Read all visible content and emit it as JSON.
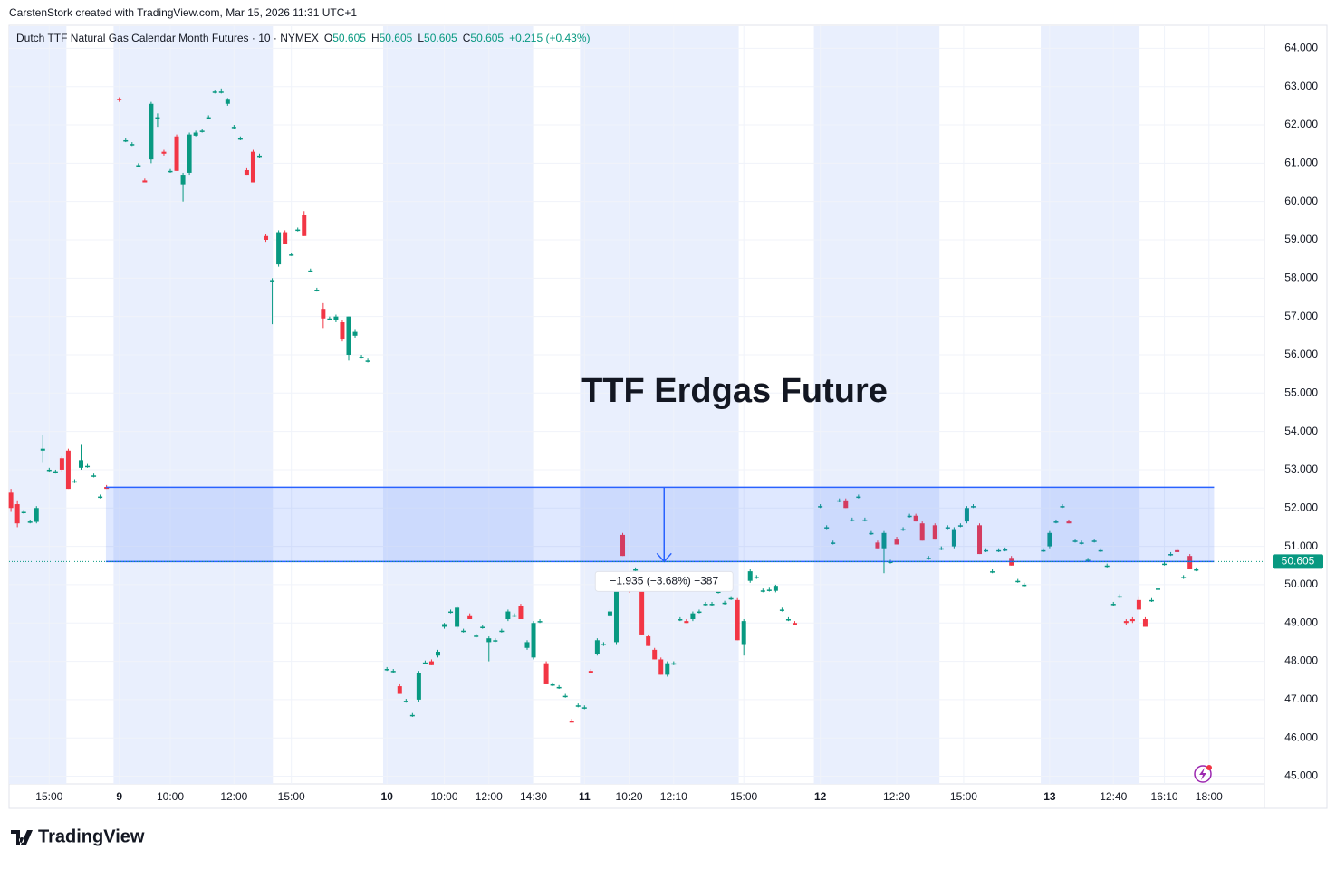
{
  "attribution": "CarstenStork created with TradingView.com, Mar 15, 2026 11:31 UTC+1",
  "logo": "TradingView",
  "chart_data": {
    "type": "candlestick",
    "symbol": "Dutch TTF Natural Gas Calendar Month Futures · 10 · NYMEX",
    "ohlc_labels": [
      "O",
      "H",
      "L",
      "C"
    ],
    "ohlc_values": [
      50.605,
      50.605,
      50.605,
      50.605
    ],
    "change": "+0.215 (+0.43%)",
    "annotation": "TTF Erdgas Future",
    "up_color": "#089981",
    "down_color": "#f23645",
    "xlim": [
      -0.3,
      196.7
    ],
    "ylim": [
      44.8,
      64.6
    ],
    "yticks": [
      {
        "value": 45,
        "label": "45.000"
      },
      {
        "value": 46,
        "label": "46.000"
      },
      {
        "value": 47,
        "label": "47.000"
      },
      {
        "value": 48,
        "label": "48.000"
      },
      {
        "value": 49,
        "label": "49.000"
      },
      {
        "value": 50,
        "label": "50.000"
      },
      {
        "value": 51,
        "label": "51.000"
      },
      {
        "value": 52,
        "label": "52.000"
      },
      {
        "value": 53,
        "label": "53.000"
      },
      {
        "value": 54,
        "label": "54.000"
      },
      {
        "value": 55,
        "label": "55.000"
      },
      {
        "value": 56,
        "label": "56.000"
      },
      {
        "value": 57,
        "label": "57.000"
      },
      {
        "value": 58,
        "label": "58.000"
      },
      {
        "value": 59,
        "label": "59.000"
      },
      {
        "value": 60,
        "label": "60.000"
      },
      {
        "value": 61,
        "label": "61.000"
      },
      {
        "value": 62,
        "label": "62.000"
      },
      {
        "value": 63,
        "label": "63.000"
      },
      {
        "value": 64,
        "label": "64.000"
      }
    ],
    "xticks": [
      {
        "value": 6,
        "label": "15:00"
      },
      {
        "value": 17,
        "label": "9"
      },
      {
        "value": 25,
        "label": "10:00"
      },
      {
        "value": 35,
        "label": "12:00"
      },
      {
        "value": 44,
        "label": "15:00"
      },
      {
        "value": 59,
        "label": "10"
      },
      {
        "value": 68,
        "label": "10:00"
      },
      {
        "value": 75,
        "label": "12:00"
      },
      {
        "value": 82,
        "label": "14:30"
      },
      {
        "value": 90,
        "label": "11"
      },
      {
        "value": 97,
        "label": "10:20"
      },
      {
        "value": 104,
        "label": "12:10"
      },
      {
        "value": 115,
        "label": "15:00"
      },
      {
        "value": 127,
        "label": "12"
      },
      {
        "value": 139,
        "label": "12:20"
      },
      {
        "value": 149.5,
        "label": "15:00"
      },
      {
        "value": 163,
        "label": "13"
      },
      {
        "value": 173,
        "label": "12:40"
      },
      {
        "value": 181,
        "label": "16:10"
      },
      {
        "value": 188,
        "label": "18:00"
      }
    ],
    "grid": true,
    "sessions": [
      [
        -0.3,
        8.7
      ],
      [
        16.1,
        41.1
      ],
      [
        58.4,
        82.1
      ],
      [
        89.3,
        114.2
      ],
      [
        126,
        145.7
      ],
      [
        161.6,
        177.1
      ]
    ],
    "measure": {
      "x0": 14.9,
      "x1": 188.8,
      "top": 52.54,
      "bottom": 50.605,
      "arrow_x": 102.5,
      "label": "−1.935 (−3.68%) −387"
    },
    "last_price": 50.605,
    "candles": [
      [
        0,
        52.4,
        52.5,
        51.9,
        52.0
      ],
      [
        1,
        52.1,
        52.2,
        51.5,
        51.6
      ],
      [
        2,
        51.9,
        51.95,
        51.85,
        51.9
      ],
      [
        3,
        51.65,
        51.7,
        51.6,
        51.65
      ],
      [
        4,
        51.64,
        52.05,
        51.6,
        52.0
      ],
      [
        5,
        53.5,
        53.9,
        53.2,
        53.55
      ],
      [
        6,
        53.0,
        53.05,
        52.95,
        53.0
      ],
      [
        7,
        52.96,
        53.0,
        52.9,
        52.96
      ],
      [
        8,
        53.3,
        53.35,
        52.95,
        53.0
      ],
      [
        9,
        53.5,
        53.55,
        52.5,
        52.5
      ],
      [
        10,
        52.7,
        52.75,
        52.65,
        52.7
      ],
      [
        11,
        53.05,
        53.65,
        53.0,
        53.25
      ],
      [
        12,
        53.1,
        53.15,
        53.05,
        53.1
      ],
      [
        13,
        52.85,
        52.9,
        52.8,
        52.85
      ],
      [
        14,
        52.3,
        52.35,
        52.25,
        52.3
      ],
      [
        15,
        52.55,
        52.6,
        52.5,
        52.5
      ],
      [
        17,
        62.68,
        62.72,
        62.6,
        62.65
      ],
      [
        18,
        61.6,
        61.65,
        61.55,
        61.6
      ],
      [
        19,
        61.5,
        61.55,
        61.45,
        61.5
      ],
      [
        20,
        60.95,
        61.0,
        60.9,
        60.95
      ],
      [
        21,
        60.55,
        60.6,
        60.5,
        60.5
      ],
      [
        22,
        61.1,
        62.6,
        61.0,
        62.55
      ],
      [
        23,
        62.2,
        62.3,
        61.95,
        62.2
      ],
      [
        24,
        61.3,
        61.35,
        61.2,
        61.25
      ],
      [
        25,
        60.8,
        60.85,
        60.75,
        60.8
      ],
      [
        26,
        61.7,
        61.75,
        60.8,
        60.8
      ],
      [
        27,
        60.45,
        60.75,
        60.0,
        60.7
      ],
      [
        28,
        60.75,
        61.8,
        60.7,
        61.75
      ],
      [
        29,
        61.72,
        61.85,
        61.7,
        61.8
      ],
      [
        30,
        61.85,
        61.9,
        61.8,
        61.85
      ],
      [
        31,
        62.2,
        62.25,
        62.15,
        62.2
      ],
      [
        32,
        62.87,
        62.92,
        62.82,
        62.87
      ],
      [
        33,
        62.87,
        62.95,
        62.82,
        62.87
      ],
      [
        34,
        62.55,
        62.7,
        62.5,
        62.68
      ],
      [
        35,
        61.95,
        62.0,
        61.9,
        61.95
      ],
      [
        36,
        61.65,
        61.7,
        61.6,
        61.65
      ],
      [
        37,
        60.82,
        60.87,
        60.7,
        60.7
      ],
      [
        38,
        61.3,
        61.35,
        60.5,
        60.5
      ],
      [
        39,
        61.2,
        61.25,
        61.15,
        61.2
      ],
      [
        40,
        59.1,
        59.15,
        58.95,
        59.0
      ],
      [
        41,
        57.95,
        58.0,
        56.8,
        57.95
      ],
      [
        42,
        58.36,
        59.25,
        58.3,
        59.2
      ],
      [
        43,
        59.2,
        59.25,
        58.9,
        58.9
      ],
      [
        44,
        58.62,
        58.67,
        58.58,
        58.62
      ],
      [
        45,
        59.27,
        59.32,
        59.22,
        59.27
      ],
      [
        46,
        59.65,
        59.75,
        59.1,
        59.1
      ],
      [
        47,
        58.2,
        58.25,
        58.15,
        58.2
      ],
      [
        48,
        57.7,
        57.75,
        57.65,
        57.7
      ],
      [
        49,
        57.2,
        57.35,
        56.7,
        56.95
      ],
      [
        50,
        56.95,
        57.0,
        56.9,
        56.95
      ],
      [
        51,
        56.9,
        57.05,
        56.85,
        57.0
      ],
      [
        52,
        56.85,
        56.9,
        56.35,
        56.4
      ],
      [
        53,
        56.0,
        57.0,
        55.85,
        57.0
      ],
      [
        54,
        56.5,
        56.65,
        56.45,
        56.6
      ],
      [
        55,
        55.95,
        56.0,
        55.9,
        55.95
      ],
      [
        56,
        55.85,
        55.9,
        55.8,
        55.85
      ],
      [
        59,
        47.8,
        47.85,
        47.75,
        47.8
      ],
      [
        60,
        47.75,
        47.8,
        47.7,
        47.75
      ],
      [
        61,
        47.35,
        47.4,
        47.15,
        47.15
      ],
      [
        62,
        46.97,
        47.02,
        46.92,
        46.97
      ],
      [
        63,
        46.6,
        46.65,
        46.55,
        46.6
      ],
      [
        64,
        47.0,
        47.75,
        46.95,
        47.7
      ],
      [
        65,
        47.97,
        48.02,
        47.92,
        47.97
      ],
      [
        66,
        48.0,
        48.05,
        47.9,
        47.9
      ],
      [
        67,
        48.15,
        48.3,
        48.1,
        48.25
      ],
      [
        68,
        48.9,
        49.0,
        48.85,
        48.97
      ],
      [
        69,
        49.3,
        49.35,
        49.25,
        49.3
      ],
      [
        70,
        48.9,
        49.45,
        48.85,
        49.4
      ],
      [
        71,
        48.8,
        48.85,
        48.75,
        48.8
      ],
      [
        72,
        49.2,
        49.25,
        49.1,
        49.1
      ],
      [
        73,
        48.67,
        48.72,
        48.62,
        48.67
      ],
      [
        74,
        48.9,
        48.95,
        48.85,
        48.9
      ],
      [
        75,
        48.5,
        48.65,
        48.0,
        48.6
      ],
      [
        76,
        48.55,
        48.6,
        48.5,
        48.55
      ],
      [
        77,
        48.8,
        48.85,
        48.75,
        48.8
      ],
      [
        78,
        49.1,
        49.35,
        49.05,
        49.3
      ],
      [
        79,
        49.2,
        49.25,
        49.15,
        49.2
      ],
      [
        80,
        49.45,
        49.5,
        49.1,
        49.1
      ],
      [
        81,
        48.35,
        48.55,
        48.3,
        48.5
      ],
      [
        82,
        48.1,
        49.05,
        48.05,
        49.0
      ],
      [
        83,
        49.05,
        49.1,
        49.0,
        49.05
      ],
      [
        84,
        47.95,
        48.0,
        47.4,
        47.4
      ],
      [
        85,
        47.4,
        47.45,
        47.35,
        47.4
      ],
      [
        86,
        47.33,
        47.38,
        47.28,
        47.33
      ],
      [
        87,
        47.1,
        47.15,
        47.05,
        47.1
      ],
      [
        88,
        46.45,
        46.5,
        46.4,
        46.4
      ],
      [
        89,
        46.85,
        46.9,
        46.8,
        46.85
      ],
      [
        90,
        46.8,
        46.85,
        46.75,
        46.8
      ],
      [
        91,
        47.75,
        47.8,
        47.7,
        47.7
      ],
      [
        92,
        48.2,
        48.6,
        48.15,
        48.55
      ],
      [
        93,
        48.45,
        48.5,
        48.4,
        48.45
      ],
      [
        94,
        49.2,
        49.35,
        49.15,
        49.3
      ],
      [
        95,
        48.5,
        50.15,
        48.45,
        50.1
      ],
      [
        96,
        51.3,
        51.35,
        50.75,
        50.75
      ],
      [
        97,
        50.02,
        50.2,
        49.8,
        49.95
      ],
      [
        98,
        50.4,
        50.45,
        50.35,
        50.4
      ],
      [
        99,
        49.85,
        49.9,
        48.7,
        48.7
      ],
      [
        100,
        48.65,
        48.7,
        48.4,
        48.4
      ],
      [
        101,
        48.3,
        48.35,
        48.05,
        48.05
      ],
      [
        102,
        48.05,
        48.1,
        47.65,
        47.65
      ],
      [
        103,
        47.65,
        48.0,
        47.6,
        47.95
      ],
      [
        104,
        47.95,
        48.0,
        47.9,
        47.95
      ],
      [
        105,
        49.1,
        49.15,
        49.05,
        49.1
      ],
      [
        106,
        49.05,
        49.1,
        49.0,
        49.0
      ],
      [
        107,
        49.1,
        49.3,
        49.05,
        49.25
      ],
      [
        108,
        49.3,
        49.35,
        49.25,
        49.3
      ],
      [
        109,
        49.5,
        49.55,
        49.45,
        49.5
      ],
      [
        110,
        49.5,
        49.55,
        49.45,
        49.5
      ],
      [
        111,
        49.82,
        49.87,
        49.77,
        49.82
      ],
      [
        112,
        49.53,
        49.58,
        49.48,
        49.53
      ],
      [
        113,
        49.65,
        49.7,
        49.6,
        49.65
      ],
      [
        114,
        49.6,
        49.65,
        48.55,
        48.55
      ],
      [
        115,
        48.45,
        49.1,
        48.15,
        49.05
      ],
      [
        116,
        50.1,
        50.4,
        50.05,
        50.35
      ],
      [
        117,
        50.2,
        50.25,
        50.15,
        50.2
      ],
      [
        118,
        49.85,
        49.9,
        49.8,
        49.85
      ],
      [
        119,
        49.87,
        49.92,
        49.82,
        49.87
      ],
      [
        120,
        49.84,
        50.0,
        49.8,
        49.97
      ],
      [
        121,
        49.35,
        49.4,
        49.3,
        49.35
      ],
      [
        122,
        49.1,
        49.15,
        49.05,
        49.1
      ],
      [
        123,
        49.0,
        49.05,
        48.95,
        48.95
      ],
      [
        127,
        52.05,
        52.1,
        52.0,
        52.05
      ],
      [
        128,
        51.5,
        51.55,
        51.45,
        51.5
      ],
      [
        129,
        51.1,
        51.15,
        51.05,
        51.1
      ],
      [
        130,
        52.2,
        52.25,
        52.15,
        52.2
      ],
      [
        131,
        52.2,
        52.25,
        52.0,
        52.0
      ],
      [
        132,
        51.7,
        51.75,
        51.65,
        51.7
      ],
      [
        133,
        52.3,
        52.35,
        52.25,
        52.3
      ],
      [
        134,
        51.7,
        51.75,
        51.65,
        51.7
      ],
      [
        135,
        51.35,
        51.4,
        51.3,
        51.35
      ],
      [
        136,
        51.1,
        51.15,
        50.95,
        50.95
      ],
      [
        137,
        50.95,
        51.4,
        50.3,
        51.35
      ],
      [
        138,
        50.6,
        50.65,
        50.55,
        50.6
      ],
      [
        139,
        51.2,
        51.25,
        51.05,
        51.05
      ],
      [
        140,
        51.45,
        51.5,
        51.4,
        51.45
      ],
      [
        141,
        51.8,
        51.85,
        51.75,
        51.8
      ],
      [
        142,
        51.8,
        51.85,
        51.65,
        51.65
      ],
      [
        143,
        51.6,
        51.65,
        51.15,
        51.15
      ],
      [
        144,
        50.7,
        50.75,
        50.65,
        50.7
      ],
      [
        145,
        51.55,
        51.6,
        51.2,
        51.2
      ],
      [
        146,
        50.95,
        51.0,
        50.9,
        50.95
      ],
      [
        147,
        51.5,
        51.55,
        51.45,
        51.5
      ],
      [
        148,
        51.0,
        51.5,
        50.95,
        51.45
      ],
      [
        149,
        51.55,
        51.6,
        51.5,
        51.55
      ],
      [
        150,
        51.65,
        52.05,
        51.6,
        52.0
      ],
      [
        151,
        52.05,
        52.1,
        52.0,
        52.05
      ],
      [
        152,
        51.55,
        51.6,
        50.8,
        50.8
      ],
      [
        153,
        50.9,
        50.95,
        50.85,
        50.9
      ],
      [
        154,
        50.35,
        50.4,
        50.3,
        50.35
      ],
      [
        155,
        50.9,
        50.95,
        50.85,
        50.9
      ],
      [
        156,
        50.92,
        50.97,
        50.87,
        50.92
      ],
      [
        157,
        50.7,
        50.75,
        50.5,
        50.5
      ],
      [
        158,
        50.1,
        50.15,
        50.05,
        50.1
      ],
      [
        159,
        50.0,
        50.05,
        49.95,
        50.0
      ],
      [
        162,
        50.9,
        50.95,
        50.85,
        50.9
      ],
      [
        163,
        51.0,
        51.4,
        50.95,
        51.35
      ],
      [
        164,
        51.65,
        51.7,
        51.6,
        51.65
      ],
      [
        165,
        52.05,
        52.1,
        52.0,
        52.05
      ],
      [
        166,
        51.65,
        51.7,
        51.6,
        51.6
      ],
      [
        167,
        51.15,
        51.2,
        51.1,
        51.15
      ],
      [
        168,
        51.1,
        51.15,
        51.05,
        51.1
      ],
      [
        169,
        50.65,
        50.7,
        50.6,
        50.65
      ],
      [
        170,
        51.15,
        51.2,
        51.1,
        51.15
      ],
      [
        171,
        50.9,
        50.95,
        50.85,
        50.9
      ],
      [
        172,
        50.5,
        50.55,
        50.45,
        50.5
      ],
      [
        173,
        49.5,
        49.55,
        49.45,
        49.5
      ],
      [
        174,
        49.7,
        49.75,
        49.65,
        49.7
      ],
      [
        175,
        49.05,
        49.1,
        48.95,
        49.0
      ],
      [
        176,
        49.1,
        49.15,
        49.0,
        49.05
      ],
      [
        177,
        49.6,
        49.7,
        49.35,
        49.35
      ],
      [
        178,
        49.1,
        49.15,
        48.9,
        48.9
      ],
      [
        179,
        49.6,
        49.65,
        49.55,
        49.6
      ],
      [
        180,
        49.9,
        49.95,
        49.85,
        49.9
      ],
      [
        181,
        50.55,
        50.6,
        50.5,
        50.55
      ],
      [
        182,
        50.8,
        50.85,
        50.75,
        50.8
      ],
      [
        183,
        50.9,
        50.95,
        50.85,
        50.85
      ],
      [
        184,
        50.2,
        50.25,
        50.15,
        50.2
      ],
      [
        185,
        50.75,
        50.8,
        50.4,
        50.4
      ],
      [
        186,
        50.4,
        50.45,
        50.35,
        50.4
      ]
    ]
  }
}
